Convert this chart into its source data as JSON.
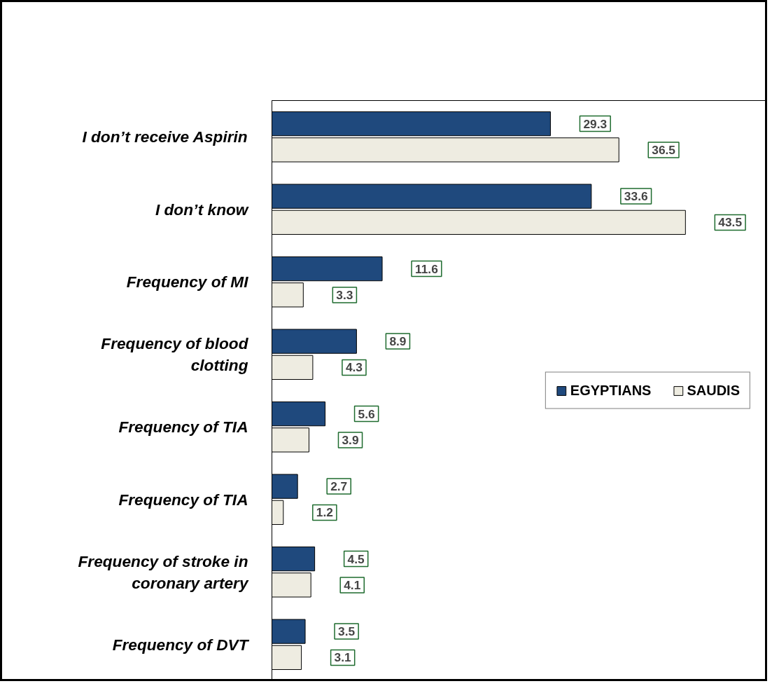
{
  "chart_data": {
    "type": "bar",
    "orientation": "horizontal",
    "categories": [
      "I don’t receive Aspirin",
      "I don’t know",
      "Frequency of MI",
      "Frequency of blood clotting",
      "Frequency of TIA",
      "Frequency of TIA",
      "Frequency of stroke in coronary artery",
      "Frequency of DVT"
    ],
    "series": [
      {
        "name": "EGYPTIANS",
        "color": "#1f497d",
        "values": [
          29.3,
          33.6,
          11.6,
          8.9,
          5.6,
          2.7,
          4.5,
          3.5
        ]
      },
      {
        "name": "SAUDIS",
        "color": "#eeece1",
        "values": [
          36.5,
          43.5,
          3.3,
          4.3,
          3.9,
          1.2,
          4.1,
          3.1
        ]
      }
    ],
    "data_labels": true,
    "legend": "right",
    "grid": false
  }
}
